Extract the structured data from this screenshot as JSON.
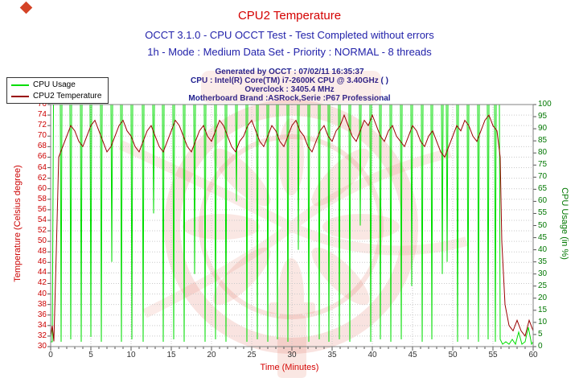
{
  "header": {
    "title": "CPU2 Temperature",
    "subtitle1": "OCCT 3.1.0 - CPU OCCT Test - Test Completed without errors",
    "subtitle2": "1h - Mode : Medium Data Set - Priority : NORMAL - 8 threads",
    "info_lines": [
      "Generated by OCCT : 07/02/11 16:35:37",
      "CPU : Intel(R) Core(TM) i7-2600K CPU @ 3.40GHz (  )",
      "Overclock : 3405.4 MHz",
      "Motherboard Brand :ASRock,Serie :P67 Professional"
    ],
    "title_color": "#d40000",
    "subtitle_color": "#2222aa",
    "info_color": "#202090"
  },
  "watermark": {
    "color": "#dd5a44"
  },
  "chart_data": {
    "type": "line",
    "title": "CPU2 Temperature",
    "grid": true,
    "legend_position": "top-left",
    "x_axis": {
      "label": "Time (Minutes)",
      "min": 0,
      "max": 60,
      "tick_step": 5,
      "minor_tick_step": 1,
      "label_color": "#d40000",
      "tick_label_color": "#333333"
    },
    "y_left": {
      "label": "Temperature (Celsius degree)",
      "min": 30,
      "max": 76,
      "tick_step": 2,
      "color": "#cc0000"
    },
    "y_right": {
      "label": "CPU Usage (in %)",
      "min": 0,
      "max": 100,
      "tick_step": 5,
      "color": "#007700"
    },
    "series": [
      {
        "name": "CPU Usage",
        "axis": "right",
        "color": "#00dd00",
        "baseline": 100,
        "lead": [
          [
            0,
            2
          ],
          [
            0.2,
            2
          ],
          [
            0.35,
            100
          ]
        ],
        "dips": [
          [
            1.3,
            2
          ],
          [
            2.5,
            3
          ],
          [
            3.8,
            2
          ],
          [
            5.0,
            4
          ],
          [
            6.3,
            2
          ],
          [
            7.6,
            35
          ],
          [
            8.8,
            2
          ],
          [
            10.1,
            3
          ],
          [
            11.5,
            2
          ],
          [
            12.8,
            55
          ],
          [
            14.0,
            2
          ],
          [
            15.3,
            3
          ],
          [
            16.6,
            2
          ],
          [
            17.9,
            30
          ],
          [
            19.2,
            2
          ],
          [
            20.5,
            3
          ],
          [
            21.8,
            2
          ],
          [
            23.1,
            60
          ],
          [
            24.4,
            2
          ],
          [
            25.7,
            3
          ],
          [
            27.0,
            2
          ],
          [
            28.2,
            3
          ],
          [
            29.5,
            2
          ],
          [
            30.8,
            40
          ],
          [
            32.1,
            2
          ],
          [
            33.4,
            3
          ],
          [
            34.6,
            2
          ],
          [
            35.9,
            3
          ],
          [
            37.2,
            2
          ],
          [
            38.5,
            50
          ],
          [
            39.8,
            2
          ],
          [
            41.0,
            3
          ],
          [
            42.3,
            2
          ],
          [
            43.6,
            3
          ],
          [
            44.9,
            25
          ],
          [
            46.2,
            2
          ],
          [
            47.4,
            3
          ],
          [
            48.7,
            30
          ],
          [
            49.3,
            35
          ],
          [
            50.6,
            2
          ],
          [
            51.9,
            3
          ],
          [
            53.2,
            2
          ],
          [
            54.4,
            3
          ],
          [
            55.3,
            2
          ]
        ],
        "tail": [
          [
            55.8,
            100
          ],
          [
            55.9,
            3
          ],
          [
            56.2,
            1
          ],
          [
            56.6,
            2
          ],
          [
            57.0,
            1
          ],
          [
            57.4,
            3
          ],
          [
            57.8,
            1
          ],
          [
            58.2,
            6
          ],
          [
            58.6,
            1
          ],
          [
            59.0,
            2
          ],
          [
            59.4,
            8
          ],
          [
            59.8,
            1
          ],
          [
            60,
            2
          ]
        ]
      },
      {
        "name": "CPU2 Temperature",
        "axis": "left",
        "color": "#990000",
        "points": [
          [
            0,
            32
          ],
          [
            0.2,
            34
          ],
          [
            0.4,
            31
          ],
          [
            0.7,
            48
          ],
          [
            1,
            66
          ],
          [
            1.5,
            68
          ],
          [
            2,
            70
          ],
          [
            2.5,
            72
          ],
          [
            3,
            71
          ],
          [
            3.5,
            69
          ],
          [
            4,
            68
          ],
          [
            4.5,
            70
          ],
          [
            5,
            72
          ],
          [
            5.5,
            73
          ],
          [
            6,
            71
          ],
          [
            6.5,
            69
          ],
          [
            7,
            67
          ],
          [
            7.5,
            68
          ],
          [
            8,
            70
          ],
          [
            8.5,
            72
          ],
          [
            9,
            73
          ],
          [
            9.5,
            71
          ],
          [
            10,
            70
          ],
          [
            10.5,
            68
          ],
          [
            11,
            67
          ],
          [
            11.5,
            69
          ],
          [
            12,
            71
          ],
          [
            12.5,
            72
          ],
          [
            13,
            70
          ],
          [
            13.5,
            68
          ],
          [
            14,
            67
          ],
          [
            14.5,
            69
          ],
          [
            15,
            71
          ],
          [
            15.5,
            73
          ],
          [
            16,
            72
          ],
          [
            16.5,
            70
          ],
          [
            17,
            68
          ],
          [
            17.5,
            67
          ],
          [
            18,
            69
          ],
          [
            18.5,
            71
          ],
          [
            19,
            72
          ],
          [
            19.5,
            70
          ],
          [
            20,
            69
          ],
          [
            20.5,
            71
          ],
          [
            21,
            73
          ],
          [
            21.5,
            72
          ],
          [
            22,
            70
          ],
          [
            22.5,
            68
          ],
          [
            23,
            67
          ],
          [
            23.5,
            69
          ],
          [
            24,
            70
          ],
          [
            24.5,
            72
          ],
          [
            25,
            73
          ],
          [
            25.5,
            71
          ],
          [
            26,
            69
          ],
          [
            26.5,
            68
          ],
          [
            27,
            70
          ],
          [
            27.5,
            72
          ],
          [
            28,
            71
          ],
          [
            28.5,
            69
          ],
          [
            29,
            68
          ],
          [
            29.5,
            70
          ],
          [
            30,
            72
          ],
          [
            30.5,
            73
          ],
          [
            31,
            71
          ],
          [
            31.5,
            70
          ],
          [
            32,
            68
          ],
          [
            32.5,
            67
          ],
          [
            33,
            69
          ],
          [
            33.5,
            71
          ],
          [
            34,
            72
          ],
          [
            34.5,
            70
          ],
          [
            35,
            69
          ],
          [
            35.5,
            71
          ],
          [
            36,
            72
          ],
          [
            36.5,
            74
          ],
          [
            37,
            72
          ],
          [
            37.5,
            70
          ],
          [
            38,
            69
          ],
          [
            38.5,
            71
          ],
          [
            39,
            73
          ],
          [
            39.5,
            72
          ],
          [
            40,
            74
          ],
          [
            40.5,
            72
          ],
          [
            41,
            70
          ],
          [
            41.5,
            69
          ],
          [
            42,
            71
          ],
          [
            42.5,
            72
          ],
          [
            43,
            70
          ],
          [
            43.5,
            69
          ],
          [
            44,
            68
          ],
          [
            44.5,
            70
          ],
          [
            45,
            72
          ],
          [
            45.5,
            71
          ],
          [
            46,
            69
          ],
          [
            46.5,
            68
          ],
          [
            47,
            70
          ],
          [
            47.5,
            71
          ],
          [
            48,
            69
          ],
          [
            48.5,
            67
          ],
          [
            49,
            66
          ],
          [
            49.5,
            68
          ],
          [
            50,
            70
          ],
          [
            50.5,
            72
          ],
          [
            51,
            71
          ],
          [
            51.5,
            73
          ],
          [
            52,
            72
          ],
          [
            52.5,
            70
          ],
          [
            53,
            69
          ],
          [
            53.5,
            71
          ],
          [
            54,
            73
          ],
          [
            54.5,
            74
          ],
          [
            55,
            72
          ],
          [
            55.5,
            71
          ],
          [
            55.9,
            66
          ],
          [
            56.1,
            50
          ],
          [
            56.5,
            38
          ],
          [
            57,
            34
          ],
          [
            57.5,
            33
          ],
          [
            58,
            35
          ],
          [
            58.5,
            33
          ],
          [
            59,
            32
          ],
          [
            59.5,
            35
          ],
          [
            60,
            33
          ]
        ]
      }
    ]
  }
}
